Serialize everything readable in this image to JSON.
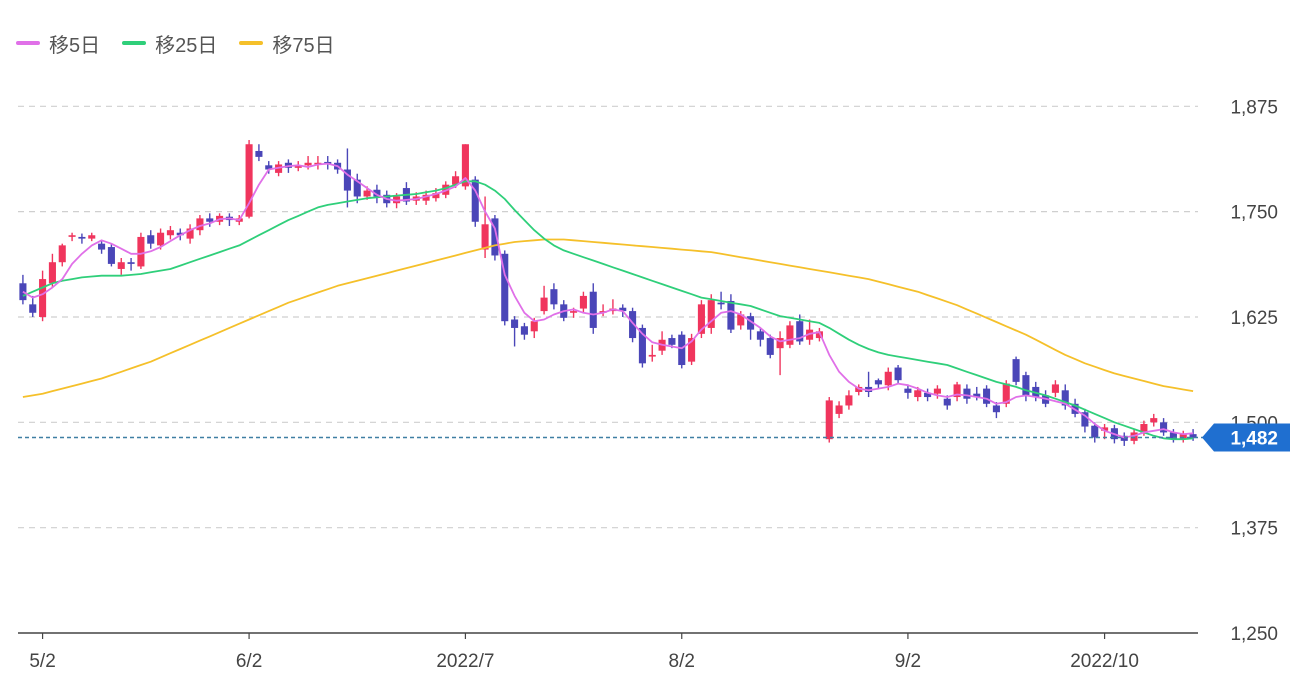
{
  "legend": [
    {
      "label": "移5日",
      "color": "#e070e8"
    },
    {
      "label": "移25日",
      "color": "#2fcf7a"
    },
    {
      "label": "移75日",
      "color": "#f5c02a"
    }
  ],
  "current_price": {
    "value": 1482,
    "label": "1,482",
    "color": "#1f6fd0"
  },
  "colors": {
    "up": "#f0355d",
    "down": "#4a46b8",
    "grid": "#cfcfcf",
    "axis": "#444444",
    "dash": "#3f7fa3"
  },
  "chart_data": {
    "type": "candlestick",
    "ylim": [
      1250,
      1900
    ],
    "yticks": [
      {
        "value": 1875,
        "label": "1,875"
      },
      {
        "value": 1750,
        "label": "1,750"
      },
      {
        "value": 1625,
        "label": "1,625"
      },
      {
        "value": 1500,
        "label": "1,500"
      },
      {
        "value": 1375,
        "label": "1,375"
      },
      {
        "value": 1250,
        "label": "1,250"
      }
    ],
    "xticks": [
      {
        "index": 2,
        "label": "5/2"
      },
      {
        "index": 23,
        "label": "6/2"
      },
      {
        "index": 45,
        "label": "2022/7"
      },
      {
        "index": 67,
        "label": "8/2"
      },
      {
        "index": 90,
        "label": "9/2"
      },
      {
        "index": 110,
        "label": "2022/10"
      }
    ],
    "candles": [
      [
        1665,
        1645,
        1675,
        1640
      ],
      [
        1640,
        1630,
        1650,
        1625
      ],
      [
        1625,
        1670,
        1680,
        1620
      ],
      [
        1665,
        1690,
        1700,
        1660
      ],
      [
        1690,
        1710,
        1712,
        1685
      ],
      [
        1722,
        1722,
        1725,
        1715
      ],
      [
        1720,
        1718,
        1724,
        1712
      ],
      [
        1718,
        1722,
        1725,
        1715
      ],
      [
        1712,
        1705,
        1716,
        1700
      ],
      [
        1708,
        1688,
        1712,
        1685
      ],
      [
        1682,
        1690,
        1695,
        1675
      ],
      [
        1690,
        1688,
        1695,
        1680
      ],
      [
        1685,
        1720,
        1725,
        1682
      ],
      [
        1722,
        1712,
        1728,
        1706
      ],
      [
        1710,
        1725,
        1730,
        1705
      ],
      [
        1722,
        1728,
        1733,
        1717
      ],
      [
        1725,
        1722,
        1730,
        1716
      ],
      [
        1718,
        1730,
        1735,
        1712
      ],
      [
        1728,
        1742,
        1746,
        1722
      ],
      [
        1742,
        1738,
        1748,
        1732
      ],
      [
        1738,
        1745,
        1748,
        1734
      ],
      [
        1744,
        1740,
        1748,
        1733
      ],
      [
        1738,
        1742,
        1746,
        1734
      ],
      [
        1744,
        1830,
        1835,
        1742
      ],
      [
        1822,
        1815,
        1830,
        1810
      ],
      [
        1805,
        1800,
        1810,
        1795
      ],
      [
        1796,
        1806,
        1810,
        1792
      ],
      [
        1808,
        1802,
        1812,
        1796
      ],
      [
        1802,
        1805,
        1810,
        1798
      ],
      [
        1805,
        1808,
        1816,
        1800
      ],
      [
        1807,
        1808,
        1816,
        1800
      ],
      [
        1809,
        1806,
        1816,
        1800
      ],
      [
        1808,
        1800,
        1812,
        1795
      ],
      [
        1800,
        1775,
        1825,
        1755
      ],
      [
        1788,
        1768,
        1795,
        1760
      ],
      [
        1768,
        1775,
        1780,
        1764
      ],
      [
        1776,
        1768,
        1782,
        1760
      ],
      [
        1770,
        1760,
        1775,
        1755
      ],
      [
        1760,
        1768,
        1772,
        1754
      ],
      [
        1778,
        1762,
        1785,
        1758
      ],
      [
        1763,
        1768,
        1773,
        1758
      ],
      [
        1763,
        1770,
        1775,
        1758
      ],
      [
        1766,
        1772,
        1778,
        1762
      ],
      [
        1770,
        1782,
        1786,
        1766
      ],
      [
        1782,
        1792,
        1798,
        1778
      ],
      [
        1780,
        1830,
        1830,
        1776
      ],
      [
        1788,
        1738,
        1792,
        1732
      ],
      [
        1705,
        1735,
        1768,
        1695
      ],
      [
        1742,
        1698,
        1746,
        1692
      ],
      [
        1700,
        1620,
        1704,
        1615
      ],
      [
        1622,
        1612,
        1626,
        1590
      ],
      [
        1614,
        1604,
        1618,
        1598
      ],
      [
        1608,
        1620,
        1624,
        1600
      ],
      [
        1632,
        1648,
        1662,
        1628
      ],
      [
        1658,
        1640,
        1665,
        1634
      ],
      [
        1640,
        1624,
        1645,
        1620
      ],
      [
        1630,
        1632,
        1636,
        1624
      ],
      [
        1635,
        1650,
        1655,
        1630
      ],
      [
        1655,
        1612,
        1665,
        1605
      ],
      [
        1630,
        1632,
        1640,
        1626
      ],
      [
        1632,
        1635,
        1646,
        1628
      ],
      [
        1636,
        1632,
        1640,
        1625
      ],
      [
        1632,
        1600,
        1636,
        1595
      ],
      [
        1612,
        1570,
        1616,
        1565
      ],
      [
        1578,
        1580,
        1592,
        1572
      ],
      [
        1585,
        1598,
        1608,
        1580
      ],
      [
        1600,
        1592,
        1604,
        1588
      ],
      [
        1604,
        1568,
        1608,
        1564
      ],
      [
        1572,
        1600,
        1605,
        1568
      ],
      [
        1605,
        1640,
        1645,
        1600
      ],
      [
        1612,
        1645,
        1652,
        1605
      ],
      [
        1642,
        1640,
        1655,
        1634
      ],
      [
        1644,
        1610,
        1652,
        1606
      ],
      [
        1615,
        1628,
        1632,
        1610
      ],
      [
        1626,
        1610,
        1630,
        1598
      ],
      [
        1608,
        1598,
        1612,
        1590
      ],
      [
        1600,
        1580,
        1604,
        1576
      ],
      [
        1588,
        1600,
        1608,
        1556
      ],
      [
        1592,
        1615,
        1620,
        1588
      ],
      [
        1620,
        1596,
        1628,
        1592
      ],
      [
        1598,
        1610,
        1622,
        1592
      ],
      [
        1600,
        1608,
        1612,
        1596
      ],
      [
        1480,
        1526,
        1530,
        1476
      ],
      [
        1510,
        1520,
        1525,
        1505
      ],
      [
        1520,
        1532,
        1538,
        1515
      ],
      [
        1536,
        1542,
        1545,
        1532
      ],
      [
        1542,
        1536,
        1560,
        1530
      ],
      [
        1550,
        1545,
        1552,
        1540
      ],
      [
        1544,
        1560,
        1565,
        1538
      ],
      [
        1565,
        1550,
        1568,
        1545
      ],
      [
        1540,
        1535,
        1545,
        1528
      ],
      [
        1530,
        1538,
        1542,
        1525
      ],
      [
        1535,
        1530,
        1540,
        1525
      ],
      [
        1534,
        1540,
        1544,
        1528
      ],
      [
        1528,
        1520,
        1532,
        1515
      ],
      [
        1530,
        1545,
        1548,
        1525
      ],
      [
        1540,
        1528,
        1545,
        1522
      ],
      [
        1534,
        1530,
        1542,
        1526
      ],
      [
        1540,
        1522,
        1544,
        1518
      ],
      [
        1520,
        1512,
        1524,
        1505
      ],
      [
        1522,
        1546,
        1550,
        1518
      ],
      [
        1575,
        1548,
        1578,
        1544
      ],
      [
        1556,
        1532,
        1560,
        1525
      ],
      [
        1542,
        1530,
        1548,
        1525
      ],
      [
        1532,
        1522,
        1538,
        1518
      ],
      [
        1535,
        1545,
        1550,
        1530
      ],
      [
        1538,
        1520,
        1545,
        1515
      ],
      [
        1522,
        1510,
        1528,
        1506
      ],
      [
        1512,
        1495,
        1516,
        1488
      ],
      [
        1496,
        1482,
        1500,
        1476
      ],
      [
        1490,
        1494,
        1498,
        1480
      ],
      [
        1493,
        1480,
        1497,
        1475
      ],
      [
        1484,
        1478,
        1488,
        1472
      ],
      [
        1478,
        1488,
        1492,
        1474
      ],
      [
        1488,
        1498,
        1502,
        1484
      ],
      [
        1500,
        1505,
        1510,
        1495
      ],
      [
        1500,
        1488,
        1505,
        1484
      ],
      [
        1488,
        1480,
        1492,
        1476
      ],
      [
        1480,
        1486,
        1490,
        1476
      ],
      [
        1486,
        1482,
        1492,
        1478
      ]
    ],
    "ma5": [
      1655,
      1648,
      1652,
      1660,
      1670,
      1688,
      1700,
      1710,
      1716,
      1712,
      1706,
      1700,
      1700,
      1703,
      1708,
      1715,
      1722,
      1728,
      1733,
      1736,
      1741,
      1742,
      1740,
      1760,
      1782,
      1800,
      1802,
      1804,
      1805,
      1803,
      1806,
      1807,
      1804,
      1794,
      1786,
      1778,
      1770,
      1765,
      1763,
      1764,
      1765,
      1768,
      1771,
      1775,
      1780,
      1790,
      1775,
      1750,
      1730,
      1675,
      1650,
      1630,
      1620,
      1622,
      1628,
      1632,
      1634,
      1630,
      1628,
      1630,
      1634,
      1632,
      1618,
      1605,
      1595,
      1592,
      1590,
      1588,
      1596,
      1610,
      1620,
      1630,
      1632,
      1628,
      1620,
      1612,
      1602,
      1596,
      1598,
      1600,
      1605,
      1607,
      1580,
      1560,
      1548,
      1540,
      1538,
      1540,
      1542,
      1546,
      1544,
      1540,
      1535,
      1532,
      1530,
      1533,
      1532,
      1530,
      1528,
      1522,
      1524,
      1530,
      1532,
      1530,
      1528,
      1525,
      1522,
      1515,
      1508,
      1498,
      1490,
      1486,
      1482,
      1484,
      1488,
      1490,
      1492,
      1488,
      1486,
      1487
    ],
    "ma25": [
      1650,
      1655,
      1660,
      1665,
      1668,
      1670,
      1672,
      1673,
      1674,
      1674,
      1674,
      1675,
      1676,
      1678,
      1680,
      1682,
      1686,
      1690,
      1694,
      1698,
      1702,
      1706,
      1710,
      1716,
      1722,
      1728,
      1734,
      1740,
      1745,
      1750,
      1755,
      1758,
      1760,
      1762,
      1764,
      1766,
      1767,
      1768,
      1769,
      1770,
      1771,
      1773,
      1775,
      1778,
      1782,
      1786,
      1786,
      1782,
      1775,
      1765,
      1752,
      1740,
      1728,
      1718,
      1710,
      1704,
      1700,
      1696,
      1692,
      1688,
      1684,
      1680,
      1676,
      1672,
      1668,
      1664,
      1660,
      1656,
      1652,
      1648,
      1646,
      1644,
      1642,
      1640,
      1638,
      1634,
      1630,
      1626,
      1624,
      1622,
      1620,
      1618,
      1612,
      1605,
      1598,
      1592,
      1587,
      1583,
      1580,
      1578,
      1576,
      1574,
      1572,
      1570,
      1568,
      1564,
      1560,
      1556,
      1552,
      1548,
      1545,
      1542,
      1538,
      1535,
      1532,
      1528,
      1524,
      1520,
      1515,
      1510,
      1505,
      1500,
      1496,
      1492,
      1488,
      1484,
      1481,
      1480,
      1480,
      1481
    ],
    "ma75": [
      1530,
      1532,
      1534,
      1537,
      1540,
      1543,
      1546,
      1549,
      1552,
      1556,
      1560,
      1564,
      1568,
      1572,
      1577,
      1582,
      1587,
      1592,
      1597,
      1602,
      1607,
      1612,
      1617,
      1622,
      1627,
      1632,
      1637,
      1642,
      1646,
      1650,
      1654,
      1658,
      1662,
      1665,
      1668,
      1671,
      1674,
      1677,
      1680,
      1683,
      1686,
      1689,
      1692,
      1695,
      1698,
      1701,
      1704,
      1707,
      1710,
      1712,
      1714,
      1715,
      1716,
      1717,
      1717,
      1717,
      1716,
      1715,
      1714,
      1713,
      1712,
      1711,
      1710,
      1709,
      1708,
      1707,
      1706,
      1705,
      1704,
      1703,
      1702,
      1700,
      1698,
      1696,
      1694,
      1692,
      1690,
      1688,
      1686,
      1684,
      1682,
      1680,
      1678,
      1676,
      1674,
      1672,
      1670,
      1667,
      1664,
      1661,
      1658,
      1655,
      1651,
      1647,
      1643,
      1639,
      1634,
      1629,
      1624,
      1619,
      1614,
      1609,
      1604,
      1598,
      1592,
      1586,
      1580,
      1575,
      1570,
      1566,
      1562,
      1558,
      1555,
      1552,
      1549,
      1546,
      1543,
      1541,
      1539,
      1537
    ]
  }
}
